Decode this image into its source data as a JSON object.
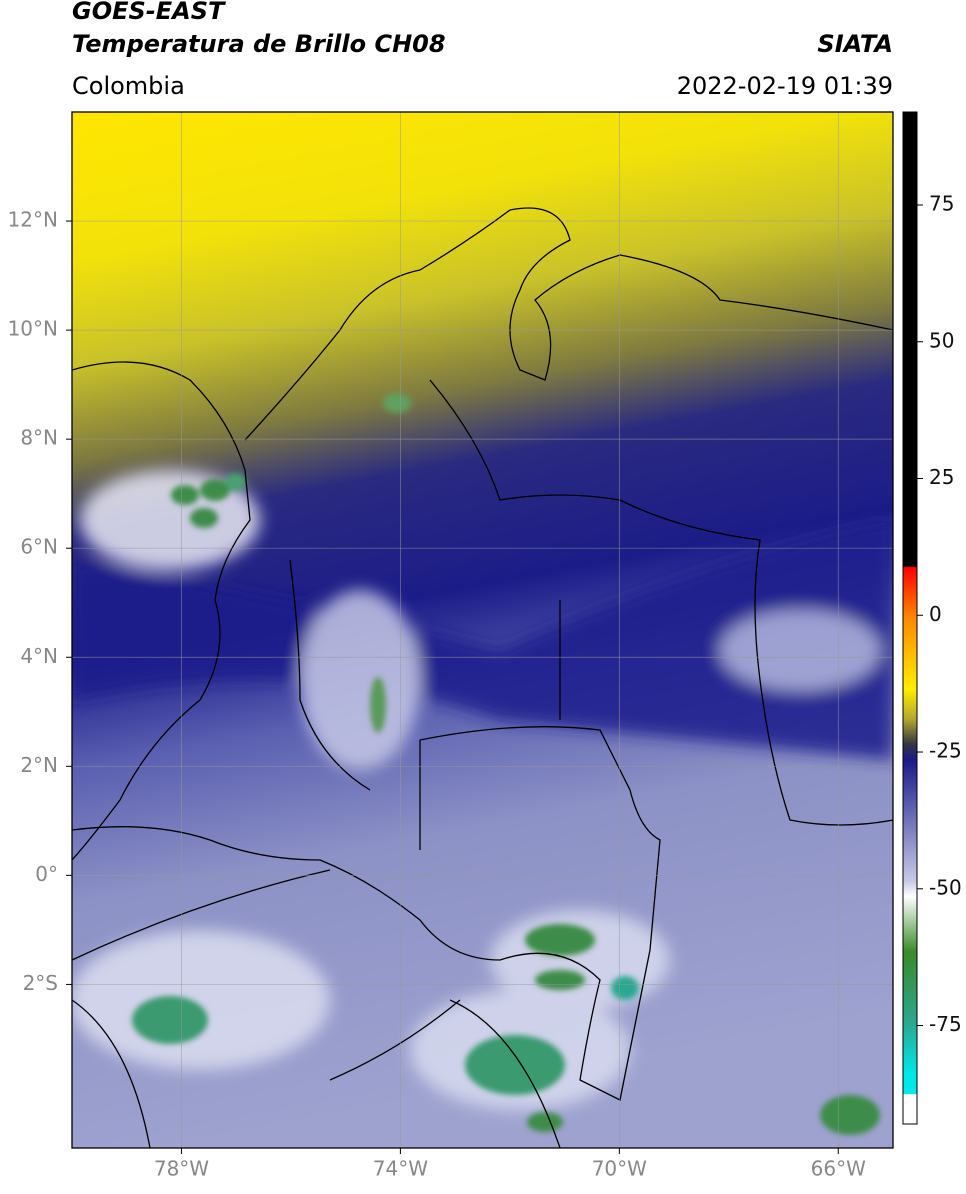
{
  "header": {
    "title": "GOES-EAST",
    "subtitle": "Temperatura de Brillo CH08",
    "region": "Colombia",
    "source": "SIATA",
    "timestamp": "2022-02-19 01:39"
  },
  "map": {
    "xlim": [
      -80,
      -65
    ],
    "ylim": [
      -5,
      14
    ],
    "xticks": [
      {
        "value": -78,
        "label": "78°W"
      },
      {
        "value": -74,
        "label": "74°W"
      },
      {
        "value": -70,
        "label": "70°W"
      },
      {
        "value": -66,
        "label": "66°W"
      }
    ],
    "yticks": [
      {
        "value": 12,
        "label": "12°N"
      },
      {
        "value": 10,
        "label": "10°N"
      },
      {
        "value": 8,
        "label": "8°N"
      },
      {
        "value": 6,
        "label": "6°N"
      },
      {
        "value": 4,
        "label": "4°N"
      },
      {
        "value": 2,
        "label": "2°N"
      },
      {
        "value": 0,
        "label": "0°"
      },
      {
        "value": -2,
        "label": "2°S"
      }
    ]
  },
  "colorbar": {
    "lim": [
      -93,
      92
    ],
    "ticks": [
      75,
      50,
      25,
      0,
      -25,
      -50,
      -75
    ]
  }
}
